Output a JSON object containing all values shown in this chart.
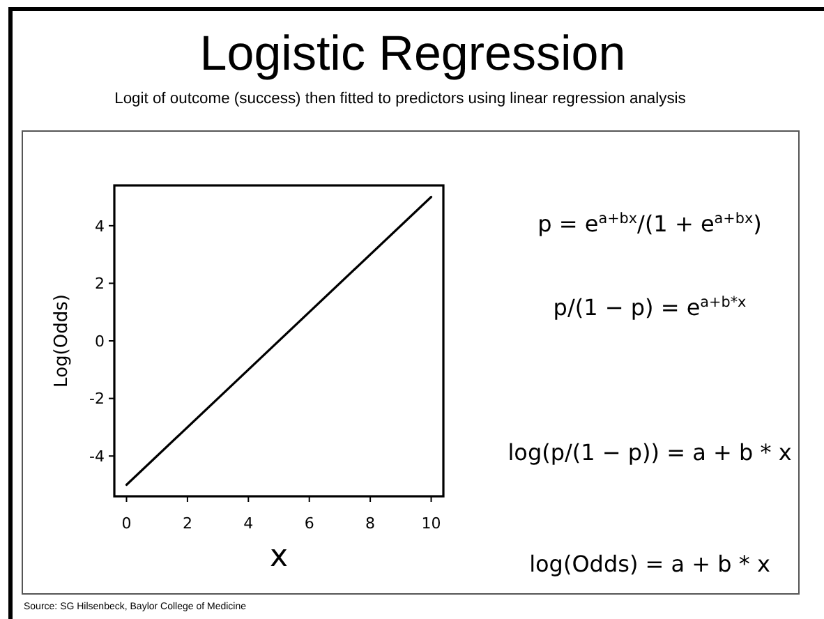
{
  "chart_data": {
    "type": "line",
    "title": "Logistic Regression",
    "subtitle": "Logit of outcome (success) then fitted to predictors using linear regression analysis",
    "xlabel": "x",
    "ylabel": "Log(Odds)",
    "x": [
      0,
      10
    ],
    "series": [
      {
        "color": "#000000",
        "values": [
          -5,
          5
        ]
      }
    ],
    "xlim": [
      -0.4,
      10.4
    ],
    "ylim": [
      -5.4,
      5.4
    ],
    "xticks": [
      0,
      2,
      4,
      6,
      8,
      10
    ],
    "yticks": [
      -4,
      -2,
      0,
      2,
      4
    ],
    "grid": false,
    "annotations": [
      "p = e$^{a+bx}$/(1 + e$^{a+bx}$)",
      "p/(1 − p) = e$^{a+b*x}$",
      "log(p/(1 − p)) = a + b * x",
      "log(Odds) = a + b * x",
      "Source: SG Hilsenbeck, Baylor College of Medicine"
    ]
  }
}
